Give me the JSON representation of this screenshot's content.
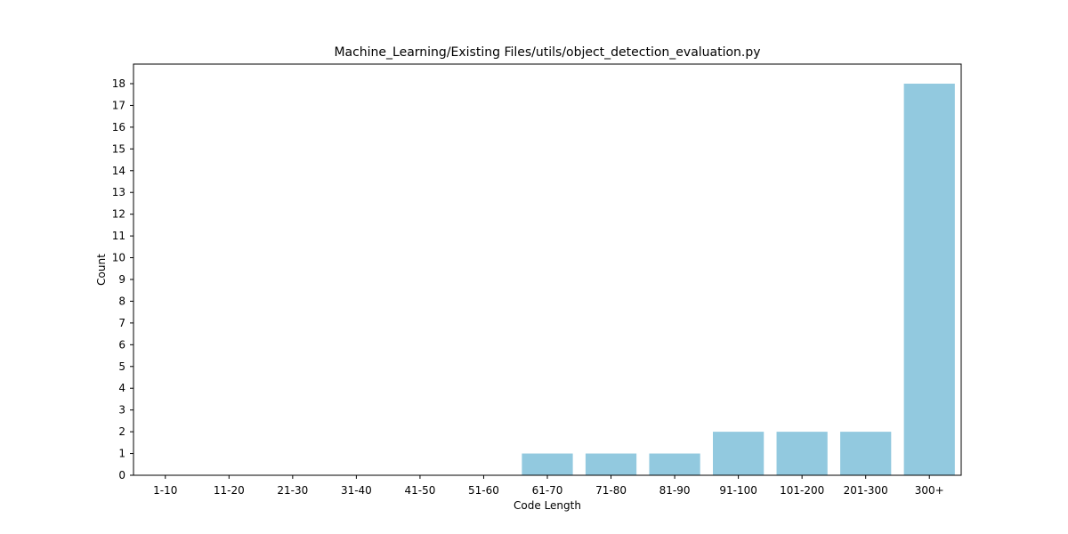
{
  "chart_data": {
    "type": "bar",
    "title": "Machine_Learning/Existing Files/utils/object_detection_evaluation.py",
    "xlabel": "Code Length",
    "ylabel": "Count",
    "categories": [
      "1-10",
      "11-20",
      "21-30",
      "31-40",
      "41-50",
      "51-60",
      "61-70",
      "71-80",
      "81-90",
      "91-100",
      "101-200",
      "201-300",
      "300+"
    ],
    "values": [
      0,
      0,
      0,
      0,
      0,
      0,
      1,
      1,
      1,
      2,
      2,
      2,
      18
    ],
    "ylim": [
      0,
      18.9
    ],
    "yticks": [
      "0",
      "1",
      "2",
      "3",
      "4",
      "5",
      "6",
      "7",
      "8",
      "9",
      "10",
      "11",
      "12",
      "13",
      "14",
      "15",
      "16",
      "17",
      "18"
    ],
    "grid": false,
    "bar_color": "#92c9df"
  }
}
